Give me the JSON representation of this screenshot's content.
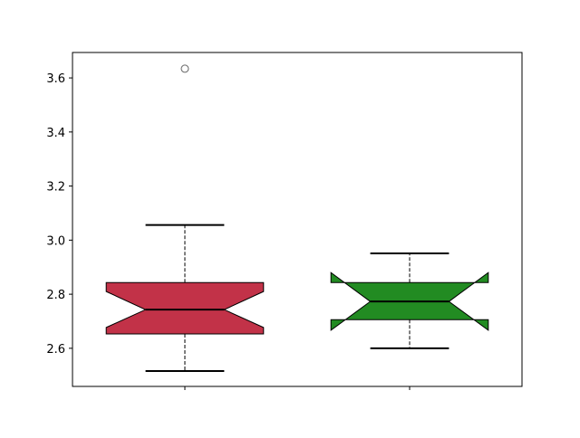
{
  "chart_data": {
    "type": "boxplot",
    "notched": true,
    "title": "",
    "xlabel": "",
    "ylabel": "",
    "xlim": [
      0.5,
      2.5
    ],
    "ylim": [
      2.459,
      3.694
    ],
    "yticks": [
      "2.6",
      "2.8",
      "3.0",
      "3.2",
      "3.4",
      "3.6"
    ],
    "xticks": [
      1,
      2
    ],
    "xtick_labels": [
      "",
      ""
    ],
    "grid": false,
    "boxes": [
      {
        "position": 1,
        "color": "#c23248",
        "whisker_low": 2.516,
        "q1": 2.653,
        "notch_low": 2.677,
        "median": 2.743,
        "notch_high": 2.81,
        "q3": 2.843,
        "whisker_high": 3.056,
        "outliers": [
          3.634
        ]
      },
      {
        "position": 2,
        "color": "#228b22",
        "whisker_low": 2.6,
        "q1": 2.706,
        "notch_low": 2.667,
        "median": 2.773,
        "notch_high": 2.88,
        "q3": 2.843,
        "whisker_high": 2.951,
        "outliers": []
      }
    ]
  }
}
